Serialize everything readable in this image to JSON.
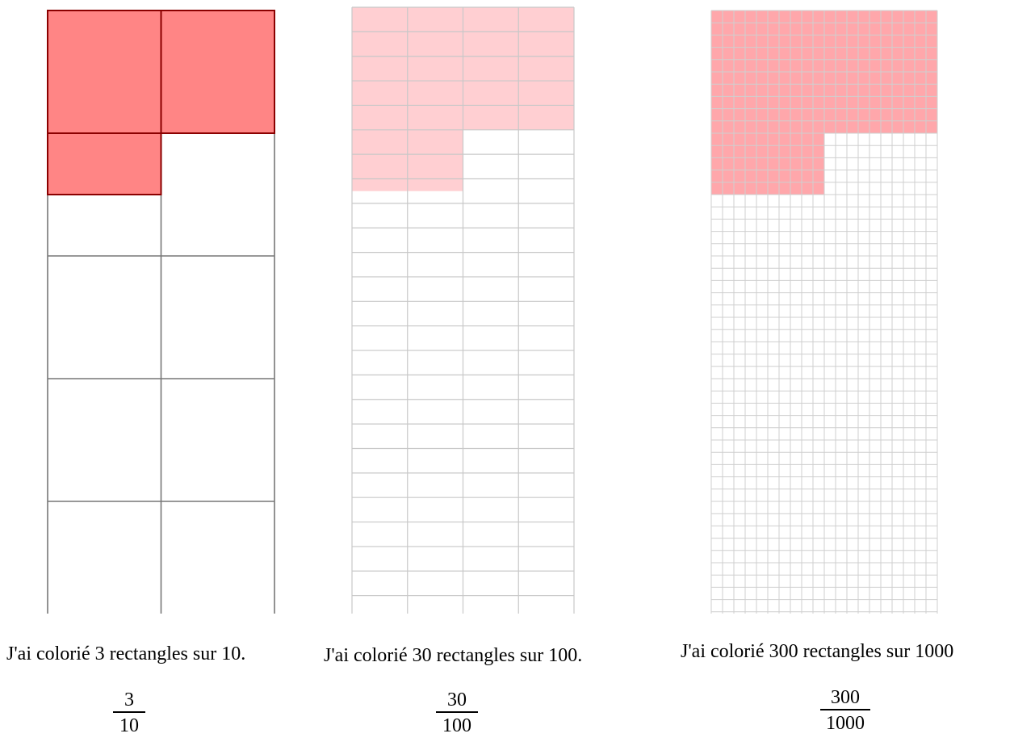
{
  "panels": [
    {
      "cols": 2,
      "rows": 5,
      "shaded_cells": 3,
      "total_cells": 10,
      "caption": "J'ai colorié 3 rectangles sur 10.",
      "fraction": {
        "numerator": "3",
        "denominator": "10"
      }
    },
    {
      "cols": 4,
      "rows": 25,
      "shaded_cells": 30,
      "total_cells": 100,
      "caption": "J'ai colorié 30 rectangles sur 100.",
      "fraction": {
        "numerator": "30",
        "denominator": "100"
      }
    },
    {
      "cols": 20,
      "rows": 50,
      "shaded_cells": 300,
      "total_cells": 1000,
      "caption": "J'ai colorié 300 rectangles sur 1000",
      "fraction": {
        "numerator": "300",
        "denominator": "1000"
      }
    }
  ],
  "colors": {
    "shade_panel1": "#ff8585",
    "shade_panel2": "#ffcfd2",
    "shade_panel3": "#ffa7ab",
    "grid_panel1": "#777777",
    "grid_panel2": "#c8c8c8",
    "grid_panel3": "#cfcfcf",
    "shade_border": "#8b0000"
  }
}
